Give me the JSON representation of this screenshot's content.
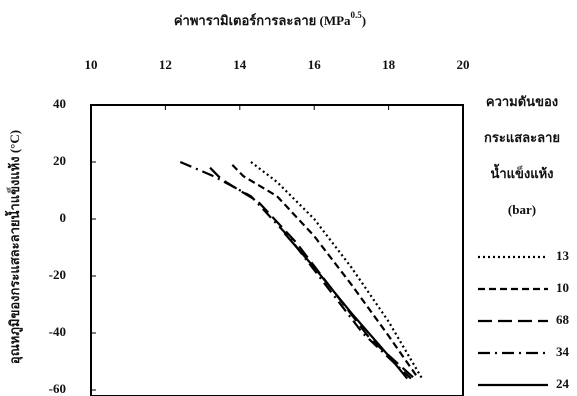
{
  "chart_data": {
    "type": "line",
    "x_label": "ค่าพารามิเตอร์การละลาย (MPa",
    "x_label_sup": "0.5",
    "x_label_end": ")",
    "y_label": "อุณหภูมิของกระแสละลายน้ำแข็งแห้ง (°C)",
    "legend_title": [
      "ความดันของ",
      "กระแสละลาย",
      "น้ำแข็งแห้ง",
      "(bar)"
    ],
    "xlim": [
      10,
      20
    ],
    "xticks": [
      10,
      12,
      14,
      16,
      18,
      20
    ],
    "ylim": [
      -60,
      40
    ],
    "yticks": [
      40,
      20,
      0,
      -20,
      -40,
      -60
    ],
    "series": [
      {
        "name": "13",
        "color": "#000000",
        "linestyle": "dotted",
        "x": [
          14.3,
          15,
          16,
          17,
          18,
          18.9
        ],
        "values": [
          20,
          13,
          0,
          -17,
          -36,
          -56
        ]
      },
      {
        "name": "10",
        "color": "#000000",
        "linestyle": "dashed",
        "x": [
          13.8,
          14.1,
          15,
          16,
          17,
          18,
          18.8
        ],
        "values": [
          19,
          15,
          8,
          -6,
          -23,
          -41,
          -56
        ]
      },
      {
        "name": "68",
        "color": "#000000",
        "linestyle": "longdash",
        "x": [
          13.2,
          13.5,
          14.5,
          15.5,
          16.5,
          17.5,
          18.7
        ],
        "values": [
          18,
          14,
          6,
          -8,
          -25,
          -42,
          -56
        ]
      },
      {
        "name": "34",
        "color": "#000000",
        "linestyle": "dashdot",
        "x": [
          12.4,
          13.3,
          14.3,
          15.3,
          16.3,
          17.3,
          18.6
        ],
        "values": [
          20,
          15,
          8,
          -6,
          -23,
          -40,
          -56
        ]
      },
      {
        "name": "24",
        "color": "#000000",
        "linestyle": "solid",
        "x": [
          15.2,
          16,
          17,
          18,
          18.5
        ],
        "values": [
          -5,
          -17,
          -33,
          -48,
          -56
        ]
      }
    ]
  }
}
